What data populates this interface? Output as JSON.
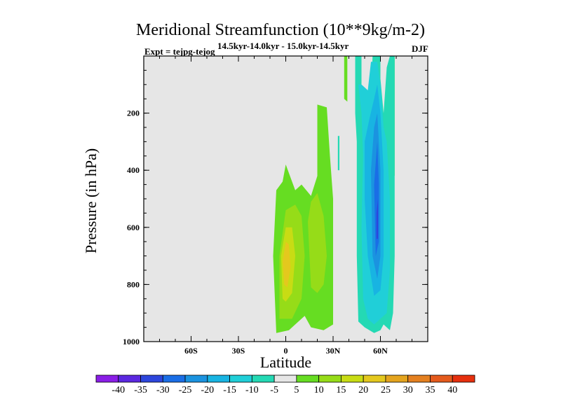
{
  "chart_data": {
    "type": "heatmap",
    "title": "Meridional Streamfunction (10**9kg/m-2)",
    "experiment": "Expt = tejpg-tejog",
    "subtitle": "14.5kyr-14.0kyr - 15.0kyr-14.5kyr",
    "season": "DJF",
    "xlabel": "Latitude",
    "ylabel": "Pressure (in hPa)",
    "xlim": [
      -90,
      90
    ],
    "ylim": [
      1000,
      0
    ],
    "x_ticks": [
      {
        "value": -60,
        "label": "60S"
      },
      {
        "value": -30,
        "label": "30S"
      },
      {
        "value": 0,
        "label": "0"
      },
      {
        "value": 30,
        "label": "30N"
      },
      {
        "value": 60,
        "label": "60N"
      }
    ],
    "y_ticks": [
      {
        "value": 200,
        "label": "200"
      },
      {
        "value": 400,
        "label": "400"
      },
      {
        "value": 600,
        "label": "600"
      },
      {
        "value": 800,
        "label": "800"
      },
      {
        "value": 1000,
        "label": "1000"
      }
    ],
    "colorbar": {
      "labels": [
        "-40",
        "-35",
        "-30",
        "-25",
        "-20",
        "-15",
        "-10",
        "-5",
        "5",
        "10",
        "15",
        "20",
        "25",
        "30",
        "35",
        "40"
      ],
      "colors": [
        "#8a1ee6",
        "#5b28e0",
        "#2d46dc",
        "#1a6ee6",
        "#1b93e0",
        "#18b4e2",
        "#20cfd8",
        "#24d9b4",
        "#e6e6e6",
        "#66dd22",
        "#96dc18",
        "#c8dc14",
        "#e4c81e",
        "#e4a41e",
        "#e48020",
        "#e45a1c",
        "#e6300e"
      ]
    },
    "regions": [
      {
        "name": "positive-cell-outer",
        "level": 5,
        "color": "#66dd22",
        "points": [
          [
            -6,
            970
          ],
          [
            -8,
            700
          ],
          [
            -6,
            470
          ],
          [
            -2,
            440
          ],
          [
            0,
            380
          ],
          [
            6,
            470
          ],
          [
            10,
            450
          ],
          [
            16,
            490
          ],
          [
            20,
            420
          ],
          [
            20,
            170
          ],
          [
            26,
            180
          ],
          [
            28,
            350
          ],
          [
            30,
            500
          ],
          [
            30,
            940
          ],
          [
            24,
            960
          ],
          [
            16,
            950
          ],
          [
            12,
            910
          ],
          [
            6,
            940
          ],
          [
            2,
            960
          ]
        ]
      },
      {
        "name": "positive-cell-10-left",
        "level": 10,
        "color": "#96dc18",
        "points": [
          [
            -4,
            920
          ],
          [
            -4,
            700
          ],
          [
            0,
            540
          ],
          [
            6,
            520
          ],
          [
            10,
            560
          ],
          [
            12,
            700
          ],
          [
            10,
            850
          ],
          [
            4,
            920
          ]
        ]
      },
      {
        "name": "positive-cell-10-right",
        "level": 10,
        "color": "#96dc18",
        "points": [
          [
            14,
            580
          ],
          [
            16,
            510
          ],
          [
            20,
            480
          ],
          [
            24,
            560
          ],
          [
            26,
            700
          ],
          [
            24,
            800
          ],
          [
            20,
            830
          ],
          [
            16,
            810
          ]
        ]
      },
      {
        "name": "positive-cell-15",
        "level": 15,
        "color": "#c8dc14",
        "points": [
          [
            -2,
            850
          ],
          [
            -3,
            700
          ],
          [
            0,
            600
          ],
          [
            4,
            600
          ],
          [
            6,
            700
          ],
          [
            4,
            830
          ],
          [
            0,
            860
          ]
        ]
      },
      {
        "name": "positive-cell-20",
        "level": 20,
        "color": "#e4c81e",
        "points": [
          [
            -1,
            800
          ],
          [
            -2,
            720
          ],
          [
            0,
            650
          ],
          [
            2,
            660
          ],
          [
            3,
            740
          ],
          [
            1,
            810
          ]
        ]
      },
      {
        "name": "upper-strip-1",
        "level": 5,
        "color": "#66dd22",
        "points": [
          [
            37,
            0
          ],
          [
            39,
            0
          ],
          [
            39,
            160
          ],
          [
            37,
            150
          ]
        ]
      },
      {
        "name": "upper-strip-2",
        "level": 5,
        "color": "#66dd22",
        "points": [
          [
            67,
            0
          ],
          [
            69,
            0
          ],
          [
            69,
            420
          ],
          [
            67,
            400
          ]
        ]
      },
      {
        "name": "small-patch",
        "level": -5,
        "color": "#24d9b4",
        "points": [
          [
            33,
            280
          ],
          [
            34,
            280
          ],
          [
            34,
            400
          ],
          [
            33,
            400
          ]
        ]
      },
      {
        "name": "negative-cell-outer",
        "level": -5,
        "color": "#24d9b4",
        "points": [
          [
            44,
            0
          ],
          [
            48,
            0
          ],
          [
            48,
            140
          ],
          [
            50,
            200
          ],
          [
            54,
            150
          ],
          [
            55,
            0
          ],
          [
            60,
            0
          ],
          [
            60,
            80
          ],
          [
            62,
            200
          ],
          [
            64,
            40
          ],
          [
            66,
            0
          ],
          [
            69,
            0
          ],
          [
            69,
            700
          ],
          [
            68,
            900
          ],
          [
            66,
            960
          ],
          [
            62,
            940
          ],
          [
            60,
            960
          ],
          [
            56,
            970
          ],
          [
            50,
            950
          ],
          [
            46,
            930
          ],
          [
            45,
            700
          ],
          [
            45,
            300
          ],
          [
            44,
            200
          ]
        ]
      },
      {
        "name": "negative-cell-10",
        "level": -10,
        "color": "#20cfd8",
        "points": [
          [
            46,
            100
          ],
          [
            48,
            200
          ],
          [
            49,
            350
          ],
          [
            48,
            600
          ],
          [
            49,
            850
          ],
          [
            52,
            920
          ],
          [
            56,
            940
          ],
          [
            60,
            920
          ],
          [
            64,
            900
          ],
          [
            66,
            750
          ],
          [
            66,
            500
          ],
          [
            64,
            300
          ],
          [
            62,
            250
          ],
          [
            60,
            100
          ],
          [
            58,
            20
          ],
          [
            54,
            20
          ],
          [
            52,
            120
          ],
          [
            48,
            100
          ]
        ]
      },
      {
        "name": "negative-cell-15",
        "level": -15,
        "color": "#18b4e2",
        "points": [
          [
            50,
            300
          ],
          [
            53,
            220
          ],
          [
            56,
            150
          ],
          [
            58,
            100
          ],
          [
            60,
            200
          ],
          [
            62,
            400
          ],
          [
            62,
            700
          ],
          [
            60,
            820
          ],
          [
            56,
            840
          ],
          [
            52,
            700
          ],
          [
            50,
            500
          ]
        ]
      },
      {
        "name": "negative-cell-20",
        "level": -20,
        "color": "#1b93e0",
        "points": [
          [
            54,
            400
          ],
          [
            56,
            250
          ],
          [
            58,
            200
          ],
          [
            60,
            400
          ],
          [
            60,
            700
          ],
          [
            58,
            780
          ],
          [
            55,
            700
          ]
        ]
      },
      {
        "name": "negative-cell-25",
        "level": -25,
        "color": "#1a6ee6",
        "points": [
          [
            56,
            450
          ],
          [
            58,
            300
          ],
          [
            59,
            450
          ],
          [
            59,
            650
          ],
          [
            57,
            700
          ]
        ]
      },
      {
        "name": "negative-cell-30",
        "level": -30,
        "color": "#2d46dc",
        "points": [
          [
            57.5,
            550
          ],
          [
            58.5,
            500
          ],
          [
            58.5,
            640
          ],
          [
            57.5,
            640
          ]
        ]
      }
    ]
  }
}
